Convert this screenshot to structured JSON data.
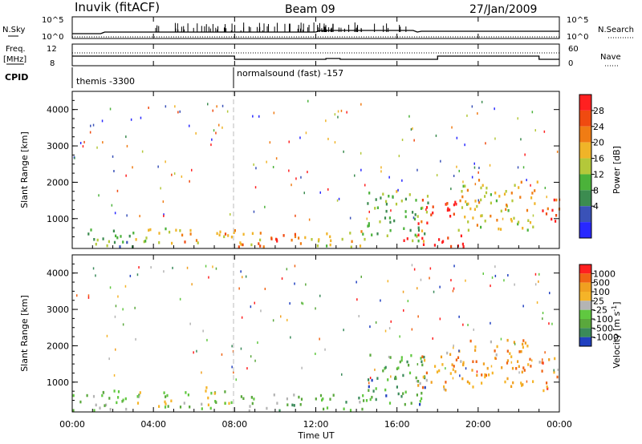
{
  "header": {
    "station": "Inuvik (fitACF)",
    "beam": "Beam 09",
    "date": "27/Jan/2009"
  },
  "top_panels": {
    "nsky_label": "N.Sky",
    "nsky_ticks": [
      "10^5",
      "10^0"
    ],
    "nsearch_label": "N.Search",
    "nsearch_ticks": [
      "10^5",
      "10^0"
    ],
    "freq_label_line1": "Freq.",
    "freq_label_line2": "[MHz]",
    "freq_ticks": [
      "12",
      "8"
    ],
    "nave_label": "Nave",
    "nave_ticks": [
      "60",
      "0"
    ],
    "cpid_label": "CPID",
    "cpid_modes": [
      {
        "name": "themis -3300",
        "start_hour": 0
      },
      {
        "name": "normalsound (fast) -157",
        "start_hour": 8
      }
    ]
  },
  "time_axis": {
    "label": "Time UT",
    "ticks": [
      "00:00",
      "04:00",
      "08:00",
      "12:00",
      "16:00",
      "20:00",
      "00:00"
    ],
    "range_hours": [
      0,
      24
    ]
  },
  "chart_data": [
    {
      "type": "heatmap",
      "panel": "power",
      "ylabel": "Slant Range [km]",
      "ylim": [
        180,
        4500
      ],
      "yticks": [
        "1000",
        "2000",
        "3000",
        "4000"
      ],
      "colorbar_label": "Power [dB]",
      "colorbar_ticks": [
        "28",
        "24",
        "20",
        "16",
        "12",
        "8",
        "4"
      ],
      "colors": [
        "#2828ff",
        "#3a52b8",
        "#3c8c50",
        "#4bb23a",
        "#b4c83a",
        "#f0b428",
        "#f07c14",
        "#f04a10",
        "#ff2020"
      ],
      "regions": [
        {
          "t": [
            0.0,
            3.0
          ],
          "r": [
            250,
            750
          ],
          "level": 0.35
        },
        {
          "t": [
            3.0,
            5.5
          ],
          "r": [
            350,
            800
          ],
          "level": 0.55
        },
        {
          "t": [
            5.5,
            8.0
          ],
          "r": [
            350,
            800
          ],
          "level": 0.65
        },
        {
          "t": [
            8.0,
            11.0
          ],
          "r": [
            250,
            700
          ],
          "level": 0.7
        },
        {
          "t": [
            9.2,
            10.4
          ],
          "r": [
            250,
            500
          ],
          "level": 0.95
        },
        {
          "t": [
            11.0,
            14.5
          ],
          "r": [
            250,
            700
          ],
          "level": 0.55
        },
        {
          "t": [
            14.5,
            17.5
          ],
          "r": [
            400,
            1800
          ],
          "level": 0.4
        },
        {
          "t": [
            16.0,
            19.5
          ],
          "r": [
            250,
            600
          ],
          "level": 0.95
        },
        {
          "t": [
            17.0,
            19.0
          ],
          "r": [
            900,
            1600
          ],
          "level": 0.9
        },
        {
          "t": [
            19.0,
            23.0
          ],
          "r": [
            700,
            2100
          ],
          "level": 0.6
        },
        {
          "t": [
            23.0,
            24.0
          ],
          "r": [
            800,
            1600
          ],
          "level": 0.9
        }
      ]
    },
    {
      "type": "heatmap",
      "panel": "velocity",
      "ylabel": "Slant Range [km]",
      "ylim": [
        180,
        4500
      ],
      "yticks": [
        "1000",
        "2000",
        "3000",
        "4000"
      ],
      "colorbar_label": "Velocity [m s",
      "colorbar_label_sup": "-1",
      "colorbar_label_end": "]",
      "colorbar_ticks": [
        "1000",
        "500",
        "100",
        "25",
        "-25",
        "-100",
        "-500",
        "-1000"
      ],
      "colors": [
        "#2040c0",
        "#3a8a5a",
        "#5aa83c",
        "#60c840",
        "#b4b4b4",
        "#f5b428",
        "#f0a020",
        "#f06414",
        "#ff2020"
      ],
      "regions": [
        {
          "t": [
            0.0,
            4.0
          ],
          "r": [
            250,
            800
          ],
          "level": 0.4
        },
        {
          "t": [
            4.0,
            8.0
          ],
          "r": [
            300,
            800
          ],
          "level": 0.45
        },
        {
          "t": [
            5.5,
            7.0
          ],
          "r": [
            600,
            900
          ],
          "level": 0.5
        },
        {
          "t": [
            8.0,
            14.5
          ],
          "r": [
            250,
            700
          ],
          "level": 0.35
        },
        {
          "t": [
            14.5,
            17.5
          ],
          "r": [
            400,
            1800
          ],
          "level": 0.25
        },
        {
          "t": [
            17.0,
            19.5
          ],
          "r": [
            800,
            1900
          ],
          "level": 0.7
        },
        {
          "t": [
            19.5,
            23.0
          ],
          "r": [
            900,
            2200
          ],
          "level": 0.7
        },
        {
          "t": [
            23.0,
            24.0
          ],
          "r": [
            800,
            1700
          ],
          "level": 0.75
        }
      ]
    }
  ]
}
